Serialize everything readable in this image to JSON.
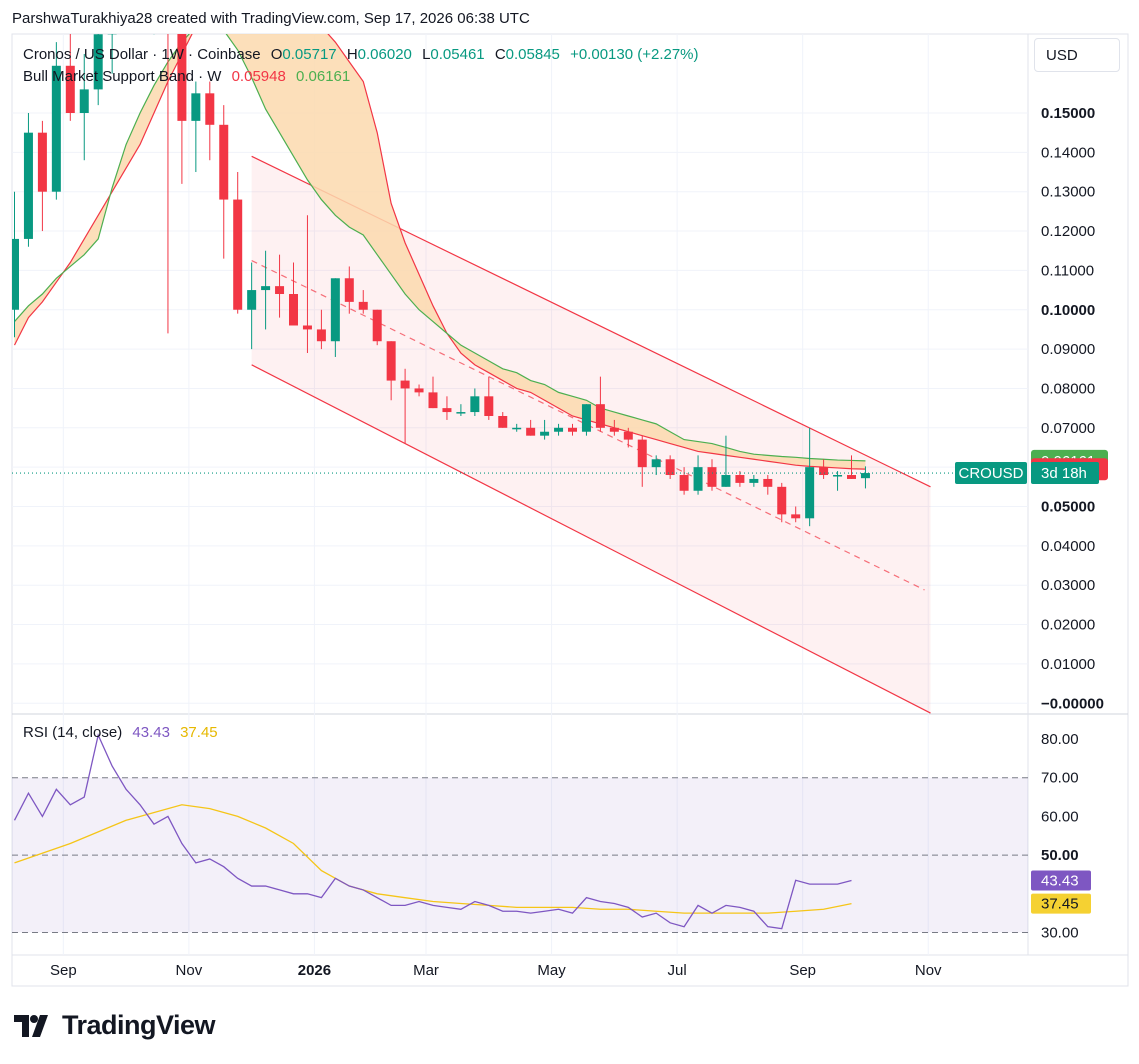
{
  "header": {
    "attribution": "ParshwaTurakhiya28 created with TradingView.com, Sep 17, 2026 06:38 UTC"
  },
  "currency_button": "USD",
  "legend": {
    "symbol": "Cronos / US Dollar · 1W · Coinbase",
    "open_label": "O",
    "open": "0.05717",
    "high_label": "H",
    "high": "0.06020",
    "low_label": "L",
    "low": "0.05461",
    "close_label": "C",
    "close": "0.05845",
    "change": "+0.00130 (+2.27%)",
    "band_name": "Bull Market Support Band · W",
    "band_sma": "0.05948",
    "band_ema": "0.06161",
    "rsi_name": "RSI (14, close)",
    "rsi_value": "43.43",
    "rsi_ma": "37.45"
  },
  "brand": {
    "name": "TradingView"
  },
  "colors": {
    "up": "#089981",
    "down": "#f23645",
    "ema": "#4caf50",
    "sma": "#f23645",
    "band_fill": "#fcd9ae",
    "channel": "#f23645",
    "rsi": "#7e57c2",
    "rsi_ma": "#f5c518"
  },
  "chart_data": {
    "type": "candlestick",
    "price_axis": {
      "ticks": [
        "0.15000",
        "0.14000",
        "0.13000",
        "0.12000",
        "0.11000",
        "0.10000",
        "0.09000",
        "0.08000",
        "0.07000",
        "0.06000",
        "0.05000",
        "0.04000",
        "0.03000",
        "0.02000",
        "0.01000",
        "−0.00000"
      ],
      "bold": [
        "0.15000",
        "0.10000",
        "0.05000",
        "−0.00000"
      ]
    },
    "time_axis": [
      {
        "label": "Sep",
        "week": 3.5
      },
      {
        "label": "Nov",
        "week": 12.5
      },
      {
        "label": "2026",
        "week": 21.5,
        "bold": true
      },
      {
        "label": "Mar",
        "week": 29.5
      },
      {
        "label": "May",
        "week": 38.5
      },
      {
        "label": "Jul",
        "week": 47.5
      },
      {
        "label": "Sep",
        "week": 56.5
      },
      {
        "label": "Nov",
        "week": 65.5
      }
    ],
    "candles": [
      [
        0.1,
        0.13,
        0.093,
        0.118
      ],
      [
        0.118,
        0.15,
        0.116,
        0.145
      ],
      [
        0.145,
        0.148,
        0.12,
        0.13
      ],
      [
        0.13,
        0.168,
        0.128,
        0.162
      ],
      [
        0.162,
        0.175,
        0.148,
        0.15
      ],
      [
        0.15,
        0.165,
        0.138,
        0.156
      ],
      [
        0.156,
        0.175,
        0.152,
        0.17
      ],
      [
        0.17,
        0.19,
        0.16,
        0.185
      ],
      [
        0.185,
        0.195,
        0.175,
        0.18
      ],
      [
        0.18,
        0.185,
        0.175,
        0.178
      ],
      [
        0.178,
        0.185,
        0.17,
        0.182
      ],
      [
        0.182,
        0.195,
        0.094,
        0.181
      ],
      [
        0.181,
        0.18,
        0.132,
        0.148
      ],
      [
        0.148,
        0.158,
        0.135,
        0.155
      ],
      [
        0.155,
        0.158,
        0.138,
        0.147
      ],
      [
        0.147,
        0.152,
        0.113,
        0.128
      ],
      [
        0.128,
        0.135,
        0.099,
        0.1
      ],
      [
        0.1,
        0.112,
        0.09,
        0.105
      ],
      [
        0.105,
        0.115,
        0.095,
        0.106
      ],
      [
        0.106,
        0.114,
        0.098,
        0.104
      ],
      [
        0.104,
        0.112,
        0.096,
        0.096
      ],
      [
        0.096,
        0.124,
        0.089,
        0.095
      ],
      [
        0.095,
        0.1,
        0.09,
        0.092
      ],
      [
        0.092,
        0.108,
        0.088,
        0.108
      ],
      [
        0.108,
        0.111,
        0.099,
        0.102
      ],
      [
        0.102,
        0.105,
        0.099,
        0.1
      ],
      [
        0.1,
        0.1,
        0.091,
        0.092
      ],
      [
        0.092,
        0.092,
        0.077,
        0.082
      ],
      [
        0.082,
        0.085,
        0.066,
        0.08
      ],
      [
        0.08,
        0.081,
        0.078,
        0.079
      ],
      [
        0.079,
        0.083,
        0.075,
        0.075
      ],
      [
        0.075,
        0.078,
        0.072,
        0.074
      ],
      [
        0.074,
        0.076,
        0.073,
        0.074
      ],
      [
        0.074,
        0.08,
        0.073,
        0.078
      ],
      [
        0.078,
        0.083,
        0.072,
        0.073
      ],
      [
        0.073,
        0.074,
        0.07,
        0.07
      ],
      [
        0.07,
        0.071,
        0.069,
        0.07
      ],
      [
        0.07,
        0.072,
        0.068,
        0.068
      ],
      [
        0.068,
        0.072,
        0.067,
        0.069
      ],
      [
        0.069,
        0.071,
        0.068,
        0.07
      ],
      [
        0.07,
        0.071,
        0.068,
        0.069
      ],
      [
        0.069,
        0.076,
        0.068,
        0.076
      ],
      [
        0.076,
        0.083,
        0.069,
        0.07
      ],
      [
        0.07,
        0.072,
        0.068,
        0.069
      ],
      [
        0.069,
        0.07,
        0.065,
        0.067
      ],
      [
        0.067,
        0.068,
        0.055,
        0.06
      ],
      [
        0.06,
        0.063,
        0.058,
        0.062
      ],
      [
        0.062,
        0.063,
        0.057,
        0.058
      ],
      [
        0.058,
        0.06,
        0.053,
        0.054
      ],
      [
        0.054,
        0.063,
        0.053,
        0.06
      ],
      [
        0.06,
        0.062,
        0.054,
        0.055
      ],
      [
        0.055,
        0.068,
        0.055,
        0.058
      ],
      [
        0.058,
        0.059,
        0.055,
        0.056
      ],
      [
        0.056,
        0.058,
        0.055,
        0.057
      ],
      [
        0.057,
        0.058,
        0.053,
        0.055
      ],
      [
        0.055,
        0.056,
        0.046,
        0.048
      ],
      [
        0.048,
        0.05,
        0.046,
        0.047
      ],
      [
        0.047,
        0.07,
        0.045,
        0.06
      ],
      [
        0.06,
        0.062,
        0.057,
        0.058
      ],
      [
        0.058,
        0.059,
        0.054,
        0.058
      ],
      [
        0.058,
        0.063,
        0.057,
        0.057
      ],
      [
        0.0572,
        0.0602,
        0.0546,
        0.0585
      ]
    ],
    "band_sma": [
      [
        0,
        0.091
      ],
      [
        1,
        0.098
      ],
      [
        2,
        0.102
      ],
      [
        3,
        0.107
      ],
      [
        4,
        0.112
      ],
      [
        5,
        0.118
      ],
      [
        6,
        0.124
      ],
      [
        7,
        0.13
      ],
      [
        8,
        0.136
      ],
      [
        9,
        0.142
      ],
      [
        10,
        0.15
      ],
      [
        11,
        0.158
      ],
      [
        12,
        0.165
      ],
      [
        13,
        0.172
      ],
      [
        14,
        0.176
      ],
      [
        15,
        0.178
      ],
      [
        16,
        0.18
      ],
      [
        17,
        0.18
      ],
      [
        18,
        0.18
      ],
      [
        19,
        0.179
      ],
      [
        20,
        0.177
      ],
      [
        21,
        0.175
      ],
      [
        22,
        0.172
      ],
      [
        23,
        0.168
      ],
      [
        24,
        0.163
      ],
      [
        25,
        0.158
      ],
      [
        26,
        0.145
      ],
      [
        27,
        0.127
      ],
      [
        28,
        0.117
      ],
      [
        29,
        0.109
      ],
      [
        30,
        0.101
      ],
      [
        31,
        0.094
      ],
      [
        32,
        0.089
      ],
      [
        33,
        0.086
      ],
      [
        34,
        0.084
      ],
      [
        35,
        0.082
      ],
      [
        36,
        0.08
      ],
      [
        37,
        0.079
      ],
      [
        38,
        0.077
      ],
      [
        39,
        0.075
      ],
      [
        40,
        0.073
      ],
      [
        41,
        0.072
      ],
      [
        42,
        0.071
      ],
      [
        43,
        0.07
      ],
      [
        44,
        0.069
      ],
      [
        45,
        0.068
      ],
      [
        46,
        0.067
      ],
      [
        47,
        0.066
      ],
      [
        48,
        0.065
      ],
      [
        49,
        0.064
      ],
      [
        50,
        0.0635
      ],
      [
        51,
        0.063
      ],
      [
        52,
        0.0625
      ],
      [
        53,
        0.062
      ],
      [
        54,
        0.0615
      ],
      [
        55,
        0.061
      ],
      [
        56,
        0.0605
      ],
      [
        57,
        0.0602
      ],
      [
        58,
        0.06
      ],
      [
        59,
        0.0598
      ],
      [
        60,
        0.0596
      ],
      [
        61,
        0.0595
      ]
    ],
    "band_ema": [
      [
        0,
        0.097
      ],
      [
        1,
        0.101
      ],
      [
        2,
        0.104
      ],
      [
        3,
        0.108
      ],
      [
        4,
        0.111
      ],
      [
        5,
        0.114
      ],
      [
        6,
        0.118
      ],
      [
        7,
        0.131
      ],
      [
        8,
        0.142
      ],
      [
        9,
        0.15
      ],
      [
        10,
        0.157
      ],
      [
        11,
        0.163
      ],
      [
        12,
        0.168
      ],
      [
        13,
        0.172
      ],
      [
        14,
        0.173
      ],
      [
        15,
        0.171
      ],
      [
        16,
        0.166
      ],
      [
        17,
        0.159
      ],
      [
        18,
        0.151
      ],
      [
        19,
        0.145
      ],
      [
        20,
        0.139
      ],
      [
        21,
        0.133
      ],
      [
        22,
        0.128
      ],
      [
        23,
        0.124
      ],
      [
        24,
        0.121
      ],
      [
        25,
        0.119
      ],
      [
        26,
        0.114
      ],
      [
        27,
        0.109
      ],
      [
        28,
        0.104
      ],
      [
        29,
        0.1
      ],
      [
        30,
        0.097
      ],
      [
        31,
        0.094
      ],
      [
        32,
        0.091
      ],
      [
        33,
        0.089
      ],
      [
        34,
        0.087
      ],
      [
        35,
        0.085
      ],
      [
        36,
        0.084
      ],
      [
        37,
        0.082
      ],
      [
        38,
        0.081
      ],
      [
        39,
        0.079
      ],
      [
        40,
        0.078
      ],
      [
        41,
        0.077
      ],
      [
        42,
        0.075
      ],
      [
        43,
        0.074
      ],
      [
        44,
        0.073
      ],
      [
        45,
        0.072
      ],
      [
        46,
        0.071
      ],
      [
        47,
        0.069
      ],
      [
        48,
        0.067
      ],
      [
        49,
        0.0665
      ],
      [
        50,
        0.066
      ],
      [
        51,
        0.065
      ],
      [
        52,
        0.064
      ],
      [
        53,
        0.0633
      ],
      [
        54,
        0.063
      ],
      [
        55,
        0.0627
      ],
      [
        56,
        0.0625
      ],
      [
        57,
        0.0622
      ],
      [
        58,
        0.062
      ],
      [
        59,
        0.0618
      ],
      [
        60,
        0.0617
      ],
      [
        61,
        0.0616
      ]
    ],
    "channel": {
      "upper": [
        [
          17,
          0.139
        ],
        [
          66,
          0.055
        ]
      ],
      "lower": [
        [
          17,
          0.086
        ],
        [
          66,
          -0.0025
        ]
      ],
      "mid": [
        [
          17,
          0.1125
        ],
        [
          66,
          0.0288
        ]
      ]
    },
    "current_price_line": 0.0585,
    "price_tags": [
      {
        "text": "0.06161",
        "value": 0.06161,
        "color": "#4caf50"
      },
      {
        "text": "0.05948",
        "value": 0.05948,
        "color": "#f23645"
      }
    ],
    "symbol_tag": {
      "symbol": "CROUSD",
      "countdown": "3d 18h"
    },
    "rsi": {
      "axis_ticks": [
        "80.00",
        "70.00",
        "60.00",
        "50.00",
        "30.00"
      ],
      "bold": [
        "50.00"
      ],
      "upper_band": 70,
      "middle_band": 50,
      "lower_band": 30,
      "tags": [
        {
          "text": "43.43",
          "value": 43.43,
          "color": "#7e57c2"
        },
        {
          "text": "37.45",
          "value": 37.45,
          "color": "#f5d132"
        }
      ],
      "values": [
        [
          0,
          59
        ],
        [
          1,
          66
        ],
        [
          2,
          60
        ],
        [
          3,
          67
        ],
        [
          4,
          63
        ],
        [
          5,
          65
        ],
        [
          6,
          81
        ],
        [
          7,
          73
        ],
        [
          8,
          67
        ],
        [
          9,
          63
        ],
        [
          10,
          58
        ],
        [
          11,
          60
        ],
        [
          12,
          53
        ],
        [
          13,
          48
        ],
        [
          14,
          49
        ],
        [
          15,
          47
        ],
        [
          16,
          44
        ],
        [
          17,
          42
        ],
        [
          18,
          42
        ],
        [
          19,
          41
        ],
        [
          20,
          40
        ],
        [
          21,
          40
        ],
        [
          22,
          39
        ],
        [
          23,
          44
        ],
        [
          24,
          42
        ],
        [
          25,
          41
        ],
        [
          26,
          39
        ],
        [
          27,
          37
        ],
        [
          28,
          37
        ],
        [
          29,
          38
        ],
        [
          30,
          37
        ],
        [
          31,
          36.5
        ],
        [
          32,
          36
        ],
        [
          33,
          38
        ],
        [
          34,
          37
        ],
        [
          35,
          35.5
        ],
        [
          36,
          35.5
        ],
        [
          37,
          35
        ],
        [
          38,
          35.5
        ],
        [
          39,
          36
        ],
        [
          40,
          35
        ],
        [
          41,
          39
        ],
        [
          42,
          38
        ],
        [
          43,
          37.5
        ],
        [
          44,
          36.5
        ],
        [
          45,
          34
        ],
        [
          46,
          35
        ],
        [
          47,
          32.5
        ],
        [
          48,
          31.5
        ],
        [
          49,
          37
        ],
        [
          50,
          35
        ],
        [
          51,
          37
        ],
        [
          52,
          36.5
        ],
        [
          53,
          35.5
        ],
        [
          54,
          31.5
        ],
        [
          55,
          31
        ],
        [
          56,
          43.5
        ],
        [
          57,
          42.5
        ],
        [
          58,
          42.5
        ],
        [
          59,
          42.5
        ],
        [
          60,
          43.43
        ]
      ],
      "ma_values": [
        [
          0,
          48
        ],
        [
          4,
          53
        ],
        [
          8,
          59
        ],
        [
          12,
          63
        ],
        [
          14,
          62
        ],
        [
          16,
          60
        ],
        [
          18,
          57
        ],
        [
          20,
          53
        ],
        [
          22,
          46
        ],
        [
          24,
          42
        ],
        [
          26,
          40
        ],
        [
          28,
          39
        ],
        [
          30,
          38
        ],
        [
          32,
          37.5
        ],
        [
          34,
          37
        ],
        [
          36,
          36.5
        ],
        [
          38,
          36.5
        ],
        [
          40,
          36.5
        ],
        [
          42,
          36
        ],
        [
          44,
          36
        ],
        [
          46,
          35.5
        ],
        [
          48,
          35
        ],
        [
          50,
          35
        ],
        [
          52,
          35
        ],
        [
          54,
          35
        ],
        [
          56,
          35.5
        ],
        [
          58,
          36
        ],
        [
          60,
          37.45
        ]
      ]
    }
  }
}
